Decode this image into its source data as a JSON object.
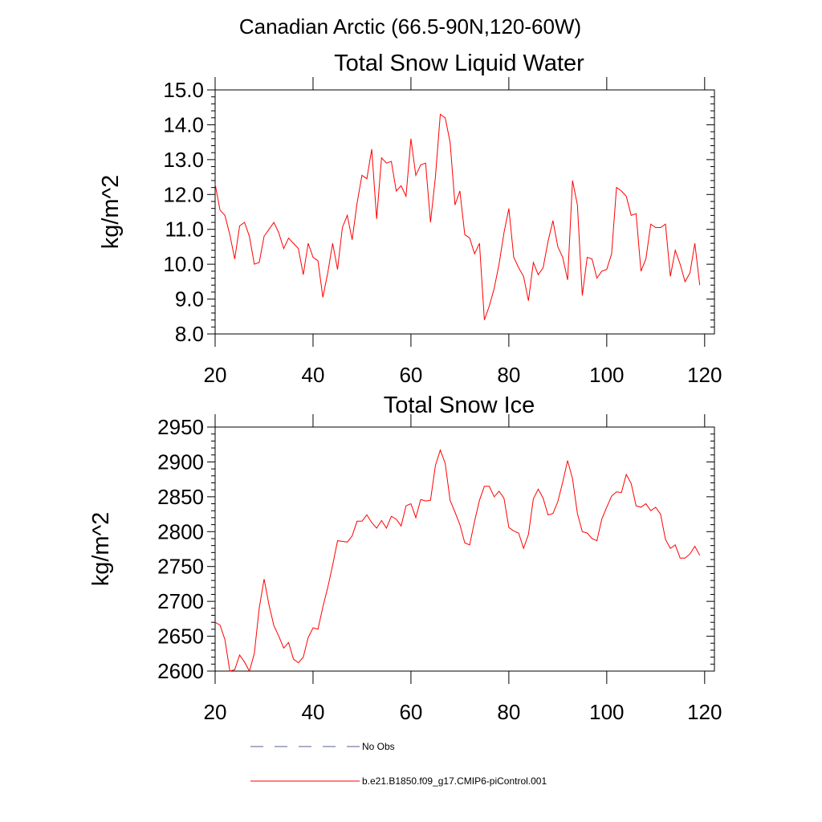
{
  "figure_title": "Canadian Arctic (66.5-90N,120-60W)",
  "legend": [
    {
      "label": "No Obs",
      "color": "#5a5f8c",
      "dash": true
    },
    {
      "label": "b.e21.B1850.f09_g17.CMIP6-piControl.001",
      "color": "#ff0000",
      "dash": false
    }
  ],
  "chart_data": [
    {
      "type": "line",
      "title": "Total Snow Liquid Water",
      "xlabel": "",
      "ylabel": "kg/m^2",
      "xlim": [
        20,
        122
      ],
      "ylim": [
        8.0,
        15.0
      ],
      "xticks": [
        20,
        40,
        60,
        80,
        100,
        120
      ],
      "xtick_labels": [
        "20",
        "40",
        "60",
        "80",
        "100",
        "120"
      ],
      "yticks": [
        8.0,
        9.0,
        10.0,
        11.0,
        12.0,
        13.0,
        14.0,
        15.0
      ],
      "ytick_labels": [
        "8.0",
        "9.0",
        "10.0",
        "11.0",
        "12.0",
        "13.0",
        "14.0",
        "15.0"
      ],
      "grid": false,
      "series": [
        {
          "name": "b.e21.B1850.f09_g17.CMIP6-piControl.001",
          "color": "#ff0000",
          "x_start": 20,
          "values": [
            12.3,
            11.55,
            11.4,
            10.85,
            10.15,
            11.1,
            11.2,
            10.8,
            10.0,
            10.05,
            10.8,
            11.0,
            11.2,
            10.9,
            10.45,
            10.75,
            10.6,
            10.45,
            9.7,
            10.6,
            10.2,
            10.1,
            9.05,
            9.75,
            10.6,
            9.85,
            11.05,
            11.4,
            10.7,
            11.75,
            12.55,
            12.45,
            13.3,
            11.3,
            13.05,
            12.9,
            12.95,
            12.1,
            12.25,
            11.95,
            13.6,
            12.55,
            12.85,
            12.9,
            11.2,
            12.5,
            14.3,
            14.2,
            13.5,
            11.7,
            12.1,
            10.85,
            10.75,
            10.3,
            10.6,
            8.4,
            8.8,
            9.3,
            10.0,
            10.9,
            11.6,
            10.2,
            9.9,
            9.65,
            8.95,
            10.05,
            9.7,
            9.9,
            10.65,
            11.25,
            10.5,
            10.2,
            9.55,
            12.4,
            11.7,
            9.1,
            10.2,
            10.15,
            9.6,
            9.8,
            9.85,
            10.3,
            12.2,
            12.1,
            11.95,
            11.4,
            11.45,
            9.8,
            10.15,
            11.15,
            11.05,
            11.05,
            11.15,
            9.65,
            10.4,
            10.0,
            9.5,
            9.75,
            10.6,
            9.4
          ]
        }
      ]
    },
    {
      "type": "line",
      "title": "Total Snow Ice",
      "xlabel": "",
      "ylabel": "kg/m^2",
      "xlim": [
        20,
        122
      ],
      "ylim": [
        2600,
        2950
      ],
      "xticks": [
        20,
        40,
        60,
        80,
        100,
        120
      ],
      "xtick_labels": [
        "20",
        "40",
        "60",
        "80",
        "100",
        "120"
      ],
      "yticks": [
        2600,
        2650,
        2700,
        2750,
        2800,
        2850,
        2900,
        2950
      ],
      "ytick_labels": [
        "2600",
        "2650",
        "2700",
        "2750",
        "2800",
        "2850",
        "2900",
        "2950"
      ],
      "grid": false,
      "series": [
        {
          "name": "b.e21.B1850.f09_g17.CMIP6-piControl.001",
          "color": "#ff0000",
          "x_start": 20,
          "values": [
            2670,
            2666,
            2645,
            2600,
            2602,
            2623,
            2613,
            2600,
            2625,
            2690,
            2732,
            2695,
            2665,
            2650,
            2633,
            2641,
            2617,
            2612,
            2620,
            2648,
            2662,
            2660,
            2692,
            2720,
            2752,
            2787,
            2786,
            2785,
            2794,
            2815,
            2815,
            2824,
            2813,
            2805,
            2816,
            2805,
            2822,
            2818,
            2808,
            2837,
            2840,
            2820,
            2846,
            2844,
            2845,
            2895,
            2917,
            2898,
            2845,
            2828,
            2810,
            2784,
            2781,
            2815,
            2845,
            2865,
            2865,
            2850,
            2858,
            2848,
            2806,
            2801,
            2798,
            2776,
            2796,
            2847,
            2861,
            2848,
            2824,
            2826,
            2843,
            2871,
            2902,
            2876,
            2826,
            2800,
            2798,
            2790,
            2787,
            2818,
            2835,
            2851,
            2857,
            2856,
            2882,
            2869,
            2837,
            2835,
            2840,
            2830,
            2835,
            2825,
            2789,
            2776,
            2781,
            2762,
            2762,
            2768,
            2779,
            2766
          ]
        }
      ]
    }
  ]
}
